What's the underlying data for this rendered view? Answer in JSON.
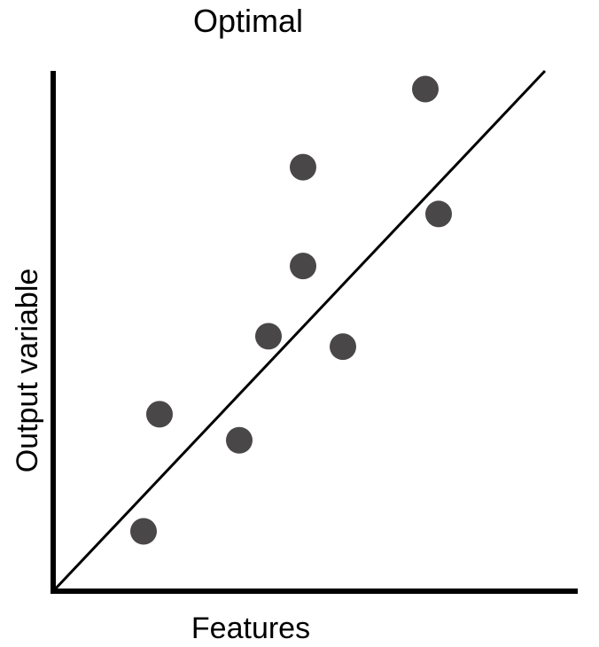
{
  "chart_data": {
    "type": "scatter",
    "title": "Optimal",
    "xlabel": "Features",
    "ylabel": "Output variable",
    "xlim": [
      0,
      100
    ],
    "ylim": [
      0,
      100
    ],
    "grid": false,
    "legend": "none",
    "colors": {
      "points": "#4a4748",
      "axis": "#000000",
      "fit_line": "#000000",
      "text": "#000000"
    },
    "series": [
      {
        "points": [
          {
            "x": 17,
            "y": 11.5
          },
          {
            "x": 20,
            "y": 34
          },
          {
            "x": 35,
            "y": 29
          },
          {
            "x": 40.5,
            "y": 49
          },
          {
            "x": 47,
            "y": 62.5
          },
          {
            "x": 47,
            "y": 81.5
          },
          {
            "x": 54.5,
            "y": 47
          },
          {
            "x": 70,
            "y": 96.5
          },
          {
            "x": 72.5,
            "y": 72.5
          }
        ]
      }
    ],
    "fit_line": {
      "x": [
        0,
        92.5
      ],
      "y": [
        0,
        100
      ]
    }
  }
}
